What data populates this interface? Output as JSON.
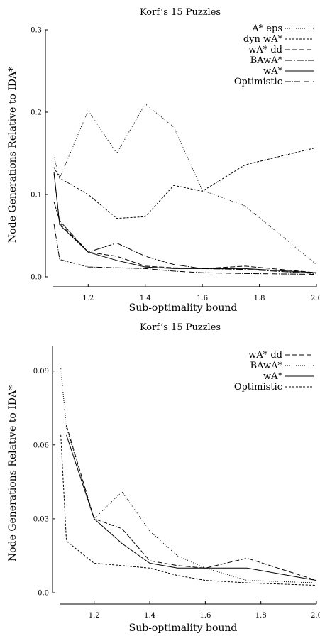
{
  "chart_data": [
    {
      "type": "line",
      "title": "Korf’s 15 Puzzles",
      "xlabel": "Sub-optimality bound",
      "ylabel": "Node Generations Relative to IDA*",
      "xlim": [
        1.05,
        2.0
      ],
      "ylim": [
        0.0,
        0.3
      ],
      "xticks": [
        1.2,
        1.4,
        1.6,
        1.8,
        2.0
      ],
      "xtick_labels": [
        "1.2",
        "1.4",
        "1.6",
        "1.8",
        "2.0"
      ],
      "yticks": [
        0.0,
        0.1,
        0.2,
        0.3
      ],
      "ytick_labels": [
        "0.0",
        "0.1",
        "0.2",
        "0.3"
      ],
      "legend_position": "top-right",
      "series": [
        {
          "name": "A* eps",
          "dash": "1,2",
          "x": [
            1.08,
            1.1,
            1.2,
            1.3,
            1.4,
            1.5,
            1.6,
            1.75,
            2.0
          ],
          "y": [
            0.145,
            0.12,
            0.202,
            0.15,
            0.21,
            0.182,
            0.105,
            0.086,
            0.015
          ]
        },
        {
          "name": "dyn wA*",
          "dash": "3,2",
          "x": [
            1.08,
            1.1,
            1.2,
            1.3,
            1.4,
            1.5,
            1.6,
            1.75,
            2.0
          ],
          "y": [
            0.133,
            0.12,
            0.1,
            0.071,
            0.073,
            0.111,
            0.104,
            0.136,
            0.157
          ]
        },
        {
          "name": "wA* dd",
          "dash": "7,3",
          "x": [
            1.08,
            1.1,
            1.2,
            1.3,
            1.4,
            1.5,
            1.6,
            1.75,
            2.0
          ],
          "y": [
            0.125,
            0.065,
            0.03,
            0.025,
            0.013,
            0.011,
            0.01,
            0.013,
            0.005
          ]
        },
        {
          "name": "BAwA*",
          "dash": "10,2,2,2",
          "x": [
            1.08,
            1.1,
            1.2,
            1.3,
            1.4,
            1.5,
            1.6,
            1.75,
            2.0
          ],
          "y": [
            0.091,
            0.068,
            0.03,
            0.041,
            0.025,
            0.015,
            0.01,
            0.009,
            0.004
          ]
        },
        {
          "name": "wA*",
          "dash": "",
          "x": [
            1.08,
            1.1,
            1.2,
            1.3,
            1.4,
            1.5,
            1.6,
            1.75,
            2.0
          ],
          "y": [
            0.127,
            0.063,
            0.03,
            0.02,
            0.012,
            0.01,
            0.01,
            0.01,
            0.005
          ]
        },
        {
          "name": "Optimistic",
          "dash": "8,2,1,2",
          "x": [
            1.08,
            1.1,
            1.2,
            1.3,
            1.4,
            1.5,
            1.6,
            1.75,
            2.0
          ],
          "y": [
            0.064,
            0.021,
            0.012,
            0.011,
            0.01,
            0.007,
            0.005,
            0.004,
            0.003
          ]
        }
      ]
    },
    {
      "type": "line",
      "title": "Korf’s 15 Puzzles",
      "xlabel": "Sub-optimality bound",
      "ylabel": "Node Generations Relative to IDA*",
      "xlim": [
        1.05,
        2.0
      ],
      "ylim": [
        0.0,
        0.1
      ],
      "xticks": [
        1.2,
        1.4,
        1.6,
        1.8,
        2.0
      ],
      "xtick_labels": [
        "1.2",
        "1.4",
        "1.6",
        "1.8",
        "2.0"
      ],
      "yticks": [
        0.0,
        0.03,
        0.06,
        0.09
      ],
      "ytick_labels": [
        "0.0",
        "0.03",
        "0.06",
        "0.09"
      ],
      "legend_position": "top-right",
      "series": [
        {
          "name": "wA* dd",
          "dash": "7,3",
          "x": [
            1.1,
            1.2,
            1.3,
            1.4,
            1.5,
            1.6,
            1.75,
            2.0
          ],
          "y": [
            0.068,
            0.03,
            0.026,
            0.013,
            0.011,
            0.01,
            0.014,
            0.005
          ]
        },
        {
          "name": "BAwA*",
          "dash": "1,2",
          "x": [
            1.08,
            1.1,
            1.2,
            1.3,
            1.4,
            1.5,
            1.6,
            1.75,
            2.0
          ],
          "y": [
            0.091,
            0.067,
            0.03,
            0.041,
            0.025,
            0.015,
            0.01,
            0.005,
            0.004
          ]
        },
        {
          "name": "wA*",
          "dash": "",
          "x": [
            1.1,
            1.2,
            1.3,
            1.4,
            1.5,
            1.6,
            1.75,
            2.0
          ],
          "y": [
            0.064,
            0.03,
            0.02,
            0.012,
            0.01,
            0.01,
            0.01,
            0.005
          ]
        },
        {
          "name": "Optimistic",
          "dash": "3,2",
          "x": [
            1.08,
            1.1,
            1.2,
            1.3,
            1.4,
            1.5,
            1.6,
            1.75,
            2.0
          ],
          "y": [
            0.064,
            0.021,
            0.012,
            0.011,
            0.01,
            0.007,
            0.005,
            0.004,
            0.003
          ]
        }
      ]
    }
  ]
}
